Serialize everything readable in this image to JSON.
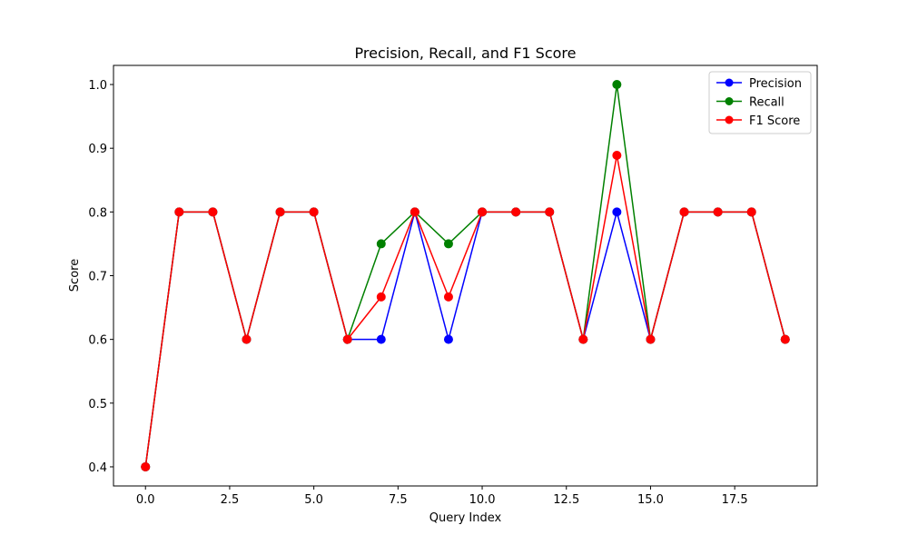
{
  "chart_data": {
    "type": "line",
    "title": "Precision, Recall, and F1 Score",
    "xlabel": "Query Index",
    "ylabel": "Score",
    "xlim": [
      -0.95,
      19.95
    ],
    "ylim": [
      0.37,
      1.03
    ],
    "xticks": [
      0.0,
      2.5,
      5.0,
      7.5,
      10.0,
      12.5,
      15.0,
      17.5
    ],
    "xtick_labels": [
      "0.0",
      "2.5",
      "5.0",
      "7.5",
      "10.0",
      "12.5",
      "15.0",
      "17.5"
    ],
    "yticks": [
      0.4,
      0.5,
      0.6,
      0.7,
      0.8,
      0.9,
      1.0
    ],
    "ytick_labels": [
      "0.4",
      "0.5",
      "0.6",
      "0.7",
      "0.8",
      "0.9",
      "1.0"
    ],
    "grid": false,
    "legend_position": "top-right",
    "x": [
      0,
      1,
      2,
      3,
      4,
      5,
      6,
      7,
      8,
      9,
      10,
      11,
      12,
      13,
      14,
      15,
      16,
      17,
      18,
      19
    ],
    "series": [
      {
        "name": "Precision",
        "color": "#0000ff",
        "values": [
          0.4,
          0.8,
          0.8,
          0.6,
          0.8,
          0.8,
          0.6,
          0.6,
          0.8,
          0.6,
          0.8,
          0.8,
          0.8,
          0.6,
          0.8,
          0.6,
          0.8,
          0.8,
          0.8,
          0.6
        ]
      },
      {
        "name": "Recall",
        "color": "#008000",
        "values": [
          0.4,
          0.8,
          0.8,
          0.6,
          0.8,
          0.8,
          0.6,
          0.75,
          0.8,
          0.75,
          0.8,
          0.8,
          0.8,
          0.6,
          1.0,
          0.6,
          0.8,
          0.8,
          0.8,
          0.6
        ]
      },
      {
        "name": "F1 Score",
        "color": "#ff0000",
        "values": [
          0.4,
          0.8,
          0.8,
          0.6,
          0.8,
          0.8,
          0.6,
          0.6667,
          0.8,
          0.6667,
          0.8,
          0.8,
          0.8,
          0.6,
          0.8889,
          0.6,
          0.8,
          0.8,
          0.8,
          0.6
        ]
      }
    ]
  }
}
